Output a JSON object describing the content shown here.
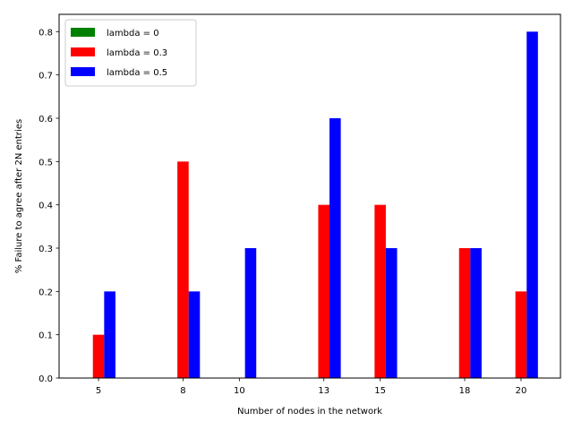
{
  "chart_data": {
    "type": "bar",
    "title": "",
    "xlabel": "Number of nodes in the network",
    "ylabel": "% Failure to agree after 2N entries",
    "x": [
      5,
      8,
      10,
      13,
      15,
      18,
      20
    ],
    "xlim": [
      3.6,
      21.4
    ],
    "ylim": [
      0,
      0.84
    ],
    "yticks": [
      "0.0",
      "0.1",
      "0.2",
      "0.3",
      "0.4",
      "0.5",
      "0.6",
      "0.7",
      "0.8"
    ],
    "ytick_values": [
      0,
      0.1,
      0.2,
      0.3,
      0.4,
      0.5,
      0.6,
      0.7,
      0.8
    ],
    "grid": false,
    "legend_position": "top-left",
    "series": [
      {
        "name": "lambda = 0",
        "color": "#008000",
        "values": [
          0,
          0,
          0,
          0,
          0,
          0,
          0
        ]
      },
      {
        "name": "lambda = 0.3",
        "color": "#ff0000",
        "values": [
          0.1,
          0.5,
          0,
          0.4,
          0.4,
          0.3,
          0.2
        ]
      },
      {
        "name": "lambda = 0.5",
        "color": "#0000ff",
        "values": [
          0.2,
          0.2,
          0.3,
          0.6,
          0.3,
          0.3,
          0.8
        ]
      }
    ]
  }
}
